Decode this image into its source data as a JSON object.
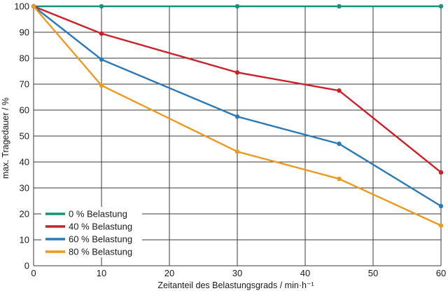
{
  "chart_data": {
    "type": "line",
    "xlabel": "Zeitanteil des Belastungsgrads / min·h⁻¹",
    "ylabel": "max. Tragedauer / %",
    "xlim": [
      0,
      60
    ],
    "ylim": [
      0,
      100
    ],
    "x_ticks": [
      "0",
      "10",
      "20",
      "30",
      "40",
      "50",
      "60"
    ],
    "y_ticks": [
      "0",
      "10",
      "20",
      "30",
      "40",
      "50",
      "60",
      "70",
      "80",
      "90",
      "100"
    ],
    "x_tick_values": [
      0,
      10,
      20,
      30,
      40,
      50,
      60
    ],
    "y_tick_values": [
      0,
      10,
      20,
      30,
      40,
      50,
      60,
      70,
      80,
      90,
      100
    ],
    "grid": true,
    "legend_position": "bottom-left",
    "x": [
      0,
      10,
      30,
      45,
      60
    ],
    "series": [
      {
        "name": "0 % Belastung",
        "color": "#17917c",
        "values": [
          100,
          100,
          100,
          100,
          100
        ]
      },
      {
        "name": "40 % Belastung",
        "color": "#cc1f2a",
        "values": [
          100,
          89.5,
          74.5,
          67.5,
          36
        ]
      },
      {
        "name": "60 % Belastung",
        "color": "#2b7ab8",
        "values": [
          100,
          79.5,
          57.5,
          47,
          23
        ]
      },
      {
        "name": "80 % Belastung",
        "color": "#eb9a1f",
        "values": [
          100,
          69.5,
          44,
          33.5,
          15.5
        ]
      }
    ]
  }
}
